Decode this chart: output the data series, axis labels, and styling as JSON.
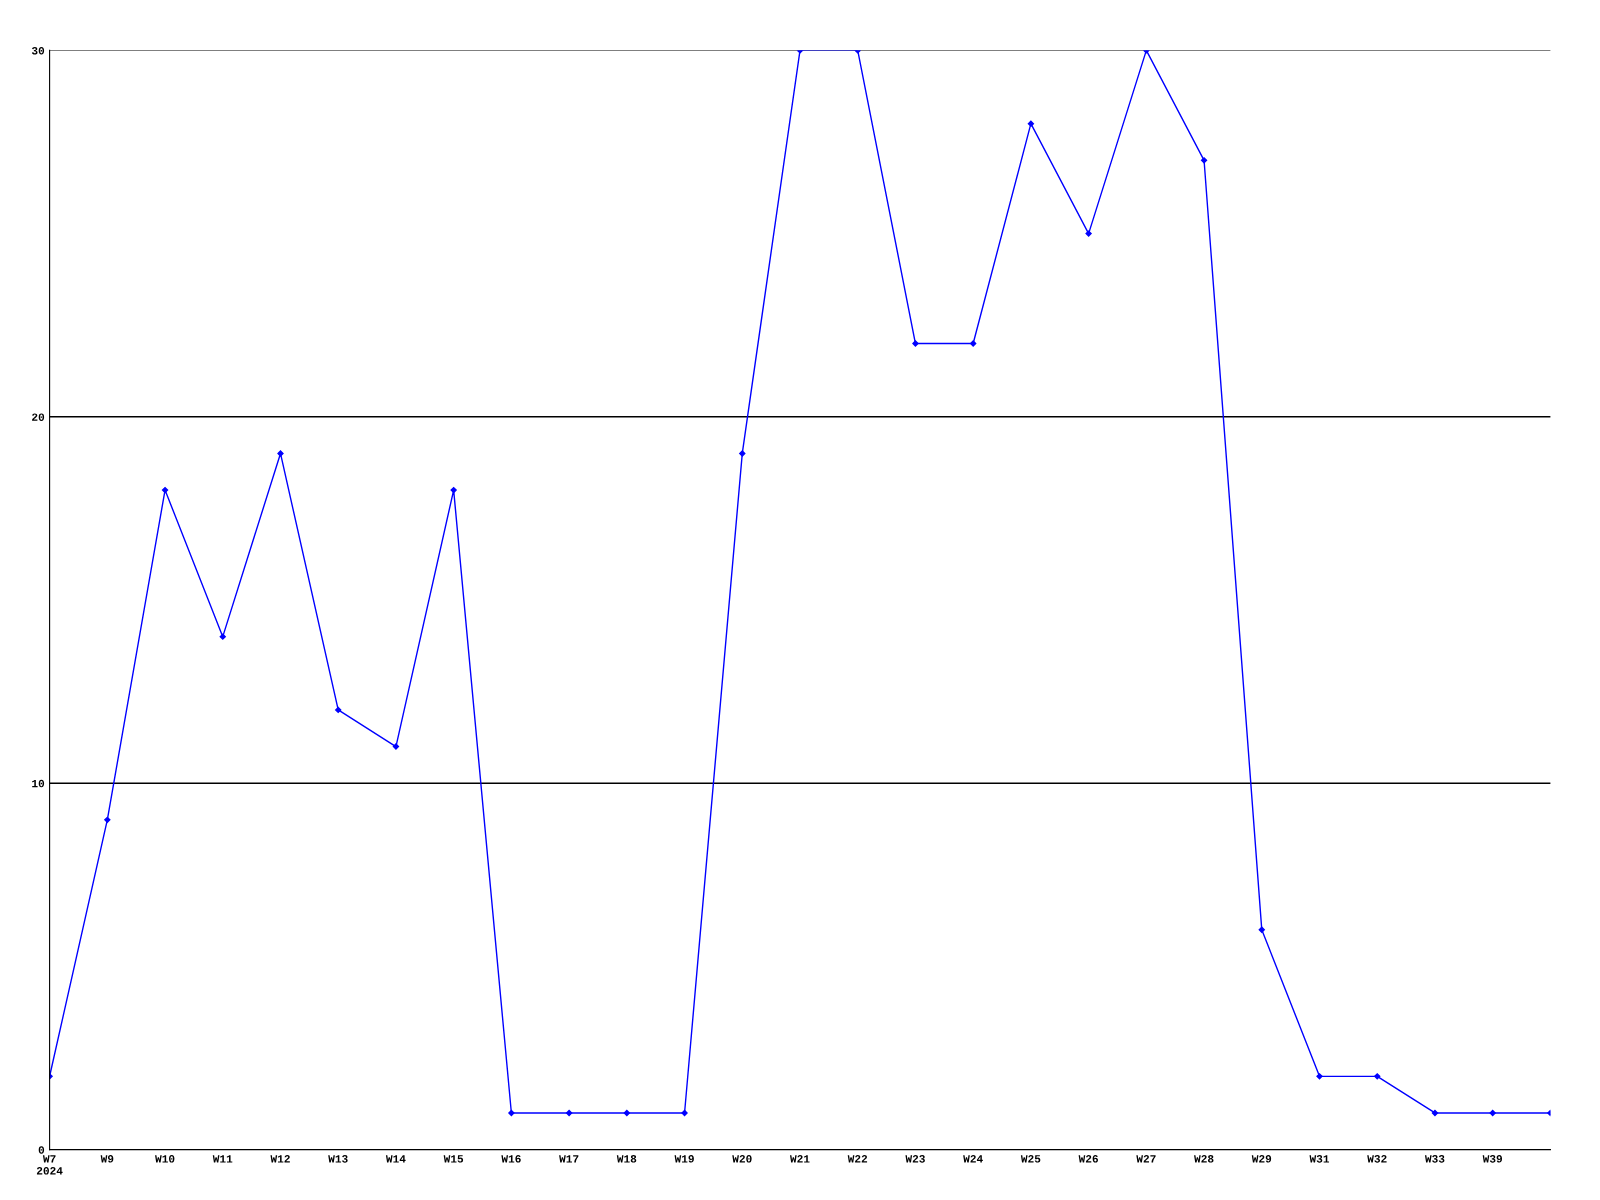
{
  "chart_data": {
    "type": "line",
    "categories": [
      "W7\n2024",
      "W9",
      "W10",
      "W11",
      "W12",
      "W13",
      "W14",
      "W15",
      "W16",
      "W17",
      "W18",
      "W19",
      "W20",
      "W21",
      "W22",
      "W23",
      "W24",
      "W25",
      "W26",
      "W27",
      "W28",
      "W29",
      "W31",
      "W32",
      "W33",
      "W39",
      null
    ],
    "series": [
      {
        "color": "#0000ff",
        "values": [
          2,
          9,
          18,
          14,
          19,
          12,
          11,
          18,
          1,
          1,
          1,
          1,
          19,
          30,
          30,
          22,
          22,
          28,
          25,
          30,
          27,
          6,
          2,
          2,
          1,
          1,
          1
        ]
      }
    ],
    "ylim": [
      0,
      30
    ],
    "yticks": [
      0,
      10,
      20,
      30
    ],
    "grid": "y",
    "marker": "diamond",
    "line_style": "solid"
  }
}
